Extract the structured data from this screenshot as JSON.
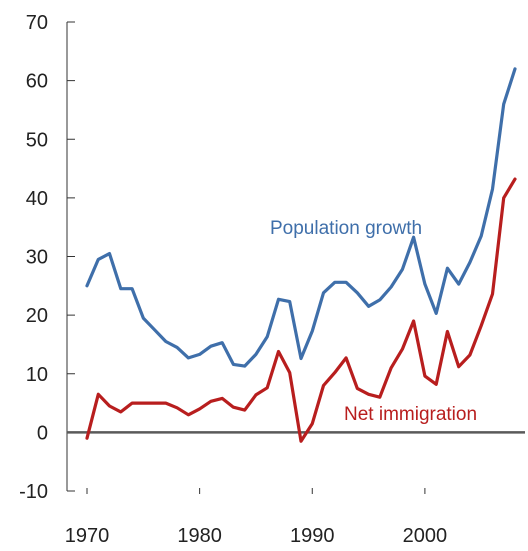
{
  "chart_data": {
    "type": "line",
    "title": "",
    "xlabel": "",
    "ylabel": "",
    "xlim": [
      1970,
      2008
    ],
    "ylim": [
      -10,
      70
    ],
    "x_ticks": [
      1970,
      1980,
      1990,
      2000
    ],
    "y_ticks": [
      70,
      60,
      50,
      40,
      30,
      20,
      10,
      0,
      -10
    ],
    "grid": false,
    "legend": "inline labels",
    "zero_line": true,
    "x": [
      1970,
      1971,
      1972,
      1973,
      1974,
      1975,
      1976,
      1977,
      1978,
      1979,
      1980,
      1981,
      1982,
      1983,
      1984,
      1985,
      1986,
      1987,
      1988,
      1989,
      1990,
      1991,
      1992,
      1993,
      1994,
      1995,
      1996,
      1997,
      1998,
      1999,
      2000,
      2001,
      2002,
      2003,
      2004,
      2005,
      2006,
      2007,
      2008
    ],
    "series": [
      {
        "name": "Population growth",
        "color": "#3f6faa",
        "values": [
          25,
          29.5,
          30.5,
          24.5,
          24.5,
          19.5,
          17.5,
          15.5,
          14.5,
          12.7,
          13.3,
          14.7,
          15.3,
          11.6,
          11.3,
          13.3,
          16.3,
          22.7,
          22.3,
          12.6,
          17.3,
          23.8,
          25.6,
          25.6,
          23.8,
          21.5,
          22.6,
          24.8,
          27.8,
          33.3,
          25.3,
          20.3,
          28,
          25.3,
          29,
          33.5,
          41.5,
          56,
          62
        ]
      },
      {
        "name": "Net immigration",
        "color": "#b81e1e",
        "values": [
          -1,
          6.5,
          4.5,
          3.5,
          5,
          5,
          5,
          5,
          4.2,
          3,
          4,
          5.3,
          5.8,
          4.3,
          3.8,
          6.4,
          7.6,
          13.8,
          10.2,
          -1.5,
          1.5,
          8,
          10.2,
          12.7,
          7.5,
          6.5,
          6,
          11,
          14.2,
          19,
          9.6,
          8.2,
          17.2,
          11.2,
          13.2,
          18.2,
          23.6,
          40,
          43.2
        ]
      }
    ]
  }
}
